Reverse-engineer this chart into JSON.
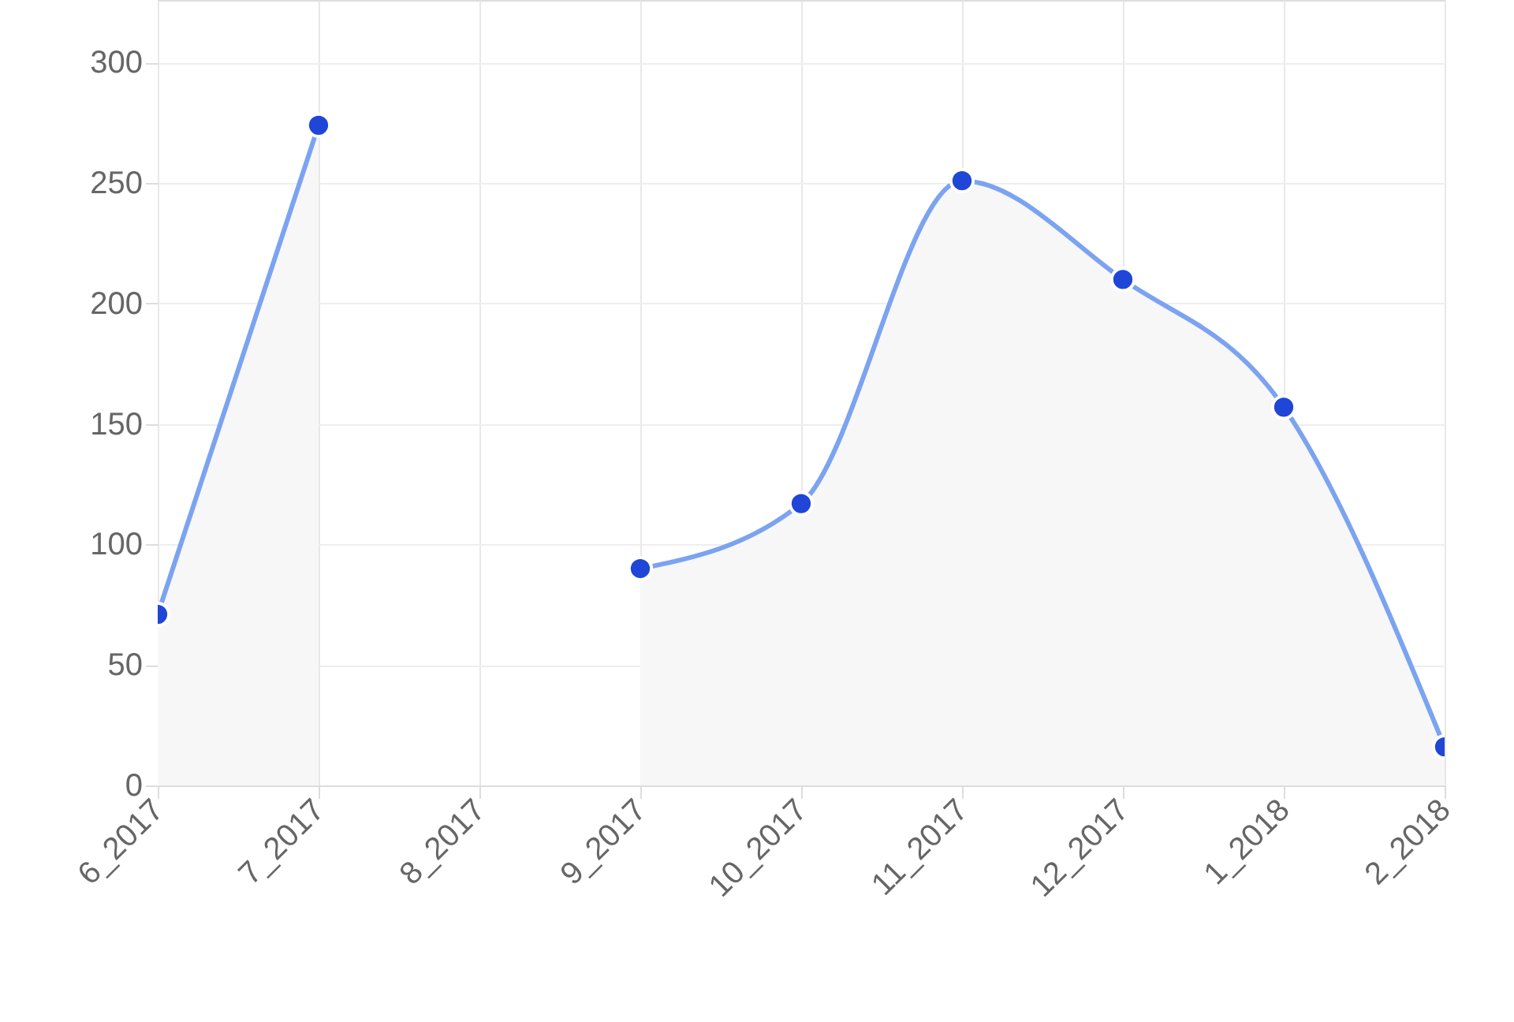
{
  "chart_data": {
    "type": "area",
    "categories": [
      "6_2017",
      "7_2017",
      "8_2017",
      "9_2017",
      "10_2017",
      "11_2017",
      "12_2017",
      "1_2018",
      "2_2018"
    ],
    "series": [
      {
        "color": "#7ba3f0",
        "values": [
          71,
          274,
          null,
          90,
          117,
          251,
          210,
          157,
          16
        ]
      }
    ],
    "ylim": [
      0,
      326
    ],
    "yticks": [
      0,
      50,
      100,
      150,
      200,
      250,
      300
    ],
    "grid": true,
    "marker": "circle"
  }
}
